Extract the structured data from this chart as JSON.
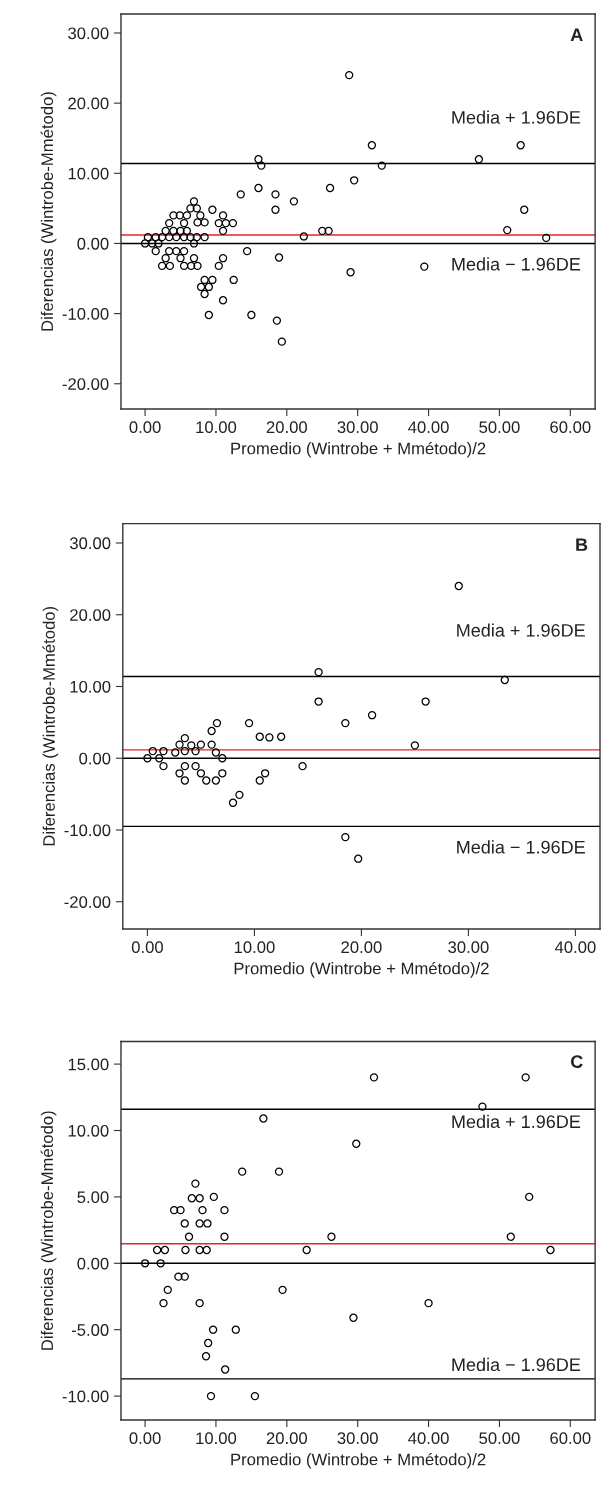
{
  "chart_data": [
    {
      "type": "scatter",
      "title": "A",
      "xlabel": "Promedio (Wintrobe + Mmétodo)/2",
      "ylabel": "Diferencias (Wintrobe-Mmétodo)",
      "color": "#000000",
      "marker": "circle",
      "x": [
        28.8,
        32.0,
        53.0,
        16.0,
        16.4,
        47.1,
        33.4,
        29.5,
        16.0,
        26.1,
        13.5,
        18.4,
        18.4,
        21.0,
        53.5,
        22.4,
        25.0,
        25.9,
        51.1,
        56.6,
        14.4,
        18.9,
        29.0,
        39.4,
        12.5,
        11.0,
        9.0,
        15.0,
        18.6,
        19.3,
        0,
        0.4,
        1.0,
        1.5,
        1.5,
        1.9,
        2.4,
        2.4,
        2.9,
        2.9,
        3.4,
        3.4,
        3.4,
        3.5,
        4.0,
        4.0,
        4.4,
        4.4,
        4.9,
        5.0,
        5.0,
        5.5,
        5.5,
        5.5,
        5.5,
        5.9,
        5.9,
        6.4,
        6.4,
        6.5,
        6.9,
        6.9,
        6.9,
        7.3,
        7.3,
        7.4,
        7.4,
        7.8,
        7.9,
        8.4,
        8.4,
        8.4,
        8.4,
        9.0,
        9.5,
        9.5,
        10.4,
        10.4,
        11.0,
        11.0,
        11.0,
        11.4,
        12.4
      ],
      "values": [
        24,
        14,
        14,
        12,
        11.1,
        12,
        11.1,
        9,
        7.9,
        7.9,
        7,
        7,
        4.8,
        6,
        4.8,
        1,
        1.8,
        1.8,
        1.9,
        0.8,
        -1.1,
        -2,
        -4.1,
        -3.3,
        -5.2,
        -8.1,
        -10.2,
        -10.2,
        -11,
        -14,
        0,
        0.9,
        0,
        0.9,
        -1.1,
        0,
        0.9,
        -3.2,
        1.8,
        -2.1,
        2.9,
        0.9,
        -1.1,
        -3.2,
        4,
        1.8,
        0.9,
        -1.1,
        4,
        1.8,
        -2.1,
        2.9,
        0.9,
        -1.1,
        -3.2,
        4,
        1.8,
        5,
        0.9,
        -3.2,
        6,
        0,
        -2.1,
        5,
        0.9,
        3,
        -3.2,
        4,
        -6.2,
        3,
        0.9,
        -5.2,
        -7.2,
        -6.2,
        -5.2,
        4.8,
        2.9,
        -3.2,
        4,
        1.8,
        -2.1,
        2.9,
        2.9
      ],
      "ref_lines": [
        {
          "axis": "y",
          "value": 0,
          "color": "#000000"
        },
        {
          "axis": "y",
          "value": 1.2,
          "color": "#e8202a"
        },
        {
          "axis": "y",
          "value": 11.4,
          "color": "#000000"
        }
      ],
      "annotations": [
        "Media + 1.96DE",
        "Media − 1.96DE"
      ],
      "xlim": [
        -3.4,
        63.5
      ],
      "ylim": [
        -23.6,
        32.7
      ],
      "xticks": [
        {
          "value": 0,
          "label": "0.00"
        },
        {
          "value": 10,
          "label": "10.00"
        },
        {
          "value": 20,
          "label": "20.00"
        },
        {
          "value": 30,
          "label": "30.00"
        },
        {
          "value": 40,
          "label": "40.00"
        },
        {
          "value": 50,
          "label": "50.00"
        },
        {
          "value": 60,
          "label": "60.00"
        }
      ],
      "yticks": [
        {
          "value": -20,
          "label": "-20.00"
        },
        {
          "value": -10,
          "label": "-10.00"
        },
        {
          "value": 0,
          "label": "0.00"
        },
        {
          "value": 10,
          "label": "10.00"
        },
        {
          "value": 20,
          "label": "20.00"
        },
        {
          "value": 30,
          "label": "30.00"
        }
      ]
    },
    {
      "type": "scatter",
      "title": "B",
      "xlabel": "Promedio (Wintrobe + Mmétodo)/2",
      "ylabel": "Diferencias (Wintrobe-Mmétodo)",
      "color": "#000000",
      "marker": "circle",
      "x": [
        29.1,
        16.0,
        33.4,
        16.0,
        26.0,
        21.0,
        18.5,
        9.5,
        6.5,
        6.0,
        10.5,
        11.4,
        12.5,
        3.5,
        25.0,
        3.0,
        4.1,
        5.0,
        6.0,
        0.5,
        1.5,
        2.6,
        3.5,
        4.5,
        6.4,
        0,
        1.1,
        7.0,
        1.5,
        3.5,
        4.5,
        14.5,
        3.0,
        5.0,
        7.0,
        11.0,
        3.5,
        5.5,
        6.4,
        10.5,
        8.6,
        8.0,
        18.5,
        19.7
      ],
      "values": [
        24,
        12,
        10.9,
        7.9,
        7.9,
        6,
        4.9,
        4.9,
        4.9,
        3.8,
        3,
        2.9,
        3,
        2.8,
        1.8,
        1.9,
        1.8,
        1.9,
        1.9,
        1,
        1,
        0.8,
        1,
        1,
        0.8,
        0,
        0,
        0,
        -1.1,
        -1.1,
        -1.1,
        -1.1,
        -2.1,
        -2.1,
        -2.1,
        -2.1,
        -3.1,
        -3.1,
        -3.1,
        -3.1,
        -5.1,
        -6.2,
        -11,
        -14
      ],
      "ref_lines": [
        {
          "axis": "y",
          "value": 0,
          "color": "#000000"
        },
        {
          "axis": "y",
          "value": 1.16,
          "color": "#e8202a"
        },
        {
          "axis": "y",
          "value": 11.4,
          "color": "#000000"
        },
        {
          "axis": "y",
          "value": -9.5,
          "color": "#000000"
        }
      ],
      "annotations": [
        "Media + 1.96DE",
        "Media − 1.96DE"
      ],
      "xlim": [
        -2.3,
        42.3
      ],
      "ylim": [
        -23.8,
        32.7
      ],
      "xticks": [
        {
          "value": 0,
          "label": "0.00"
        },
        {
          "value": 10,
          "label": "10.00"
        },
        {
          "value": 20,
          "label": "20.00"
        },
        {
          "value": 30,
          "label": "30.00"
        },
        {
          "value": 40,
          "label": "40.00"
        }
      ],
      "yticks": [
        {
          "value": -20,
          "label": "-20.00"
        },
        {
          "value": -10,
          "label": "-10.00"
        },
        {
          "value": 0,
          "label": "0.00"
        },
        {
          "value": 10,
          "label": "10.00"
        },
        {
          "value": 20,
          "label": "20.00"
        },
        {
          "value": 30,
          "label": "30.00"
        }
      ]
    },
    {
      "type": "scatter",
      "title": "C",
      "xlabel": "Promedio (Wintrobe + Mmétodo)/2",
      "ylabel": "Diferencias (Wintrobe-Mmétodo)",
      "color": "#000000",
      "marker": "circle",
      "x": [
        32.3,
        53.7,
        47.6,
        16.7,
        29.8,
        13.7,
        18.9,
        7.1,
        6.6,
        7.7,
        9.7,
        54.2,
        4.1,
        5.0,
        8.1,
        11.2,
        5.6,
        7.7,
        8.8,
        6.2,
        11.2,
        26.3,
        51.6,
        1.7,
        2.8,
        5.7,
        7.7,
        8.7,
        22.8,
        57.2,
        0,
        2.2,
        4.7,
        5.6,
        3.2,
        19.4,
        2.6,
        7.7,
        40.0,
        29.4,
        9.6,
        12.8,
        8.9,
        8.6,
        11.3,
        9.3,
        15.5
      ],
      "values": [
        14,
        14,
        11.8,
        10.9,
        9,
        6.9,
        6.9,
        6,
        4.9,
        4.9,
        5,
        5,
        4,
        4,
        4,
        4,
        3,
        3,
        3,
        2,
        2,
        2,
        2,
        1,
        1,
        1,
        1,
        1,
        1,
        1,
        0,
        0,
        -1,
        -1,
        -2,
        -2,
        -3,
        -3,
        -3,
        -4.1,
        -5,
        -5,
        -6,
        -7,
        -8,
        -10,
        -10
      ],
      "ref_lines": [
        {
          "axis": "y",
          "value": 0,
          "color": "#000000"
        },
        {
          "axis": "y",
          "value": 1.47,
          "color": "#e8202a"
        },
        {
          "axis": "y",
          "value": 11.6,
          "color": "#000000"
        },
        {
          "axis": "y",
          "value": -8.7,
          "color": "#000000"
        }
      ],
      "annotations": [
        "Media + 1.96DE",
        "Media − 1.96DE"
      ],
      "xlim": [
        -3.4,
        63.5
      ],
      "ylim": [
        -11.8,
        16.7
      ],
      "xticks": [
        {
          "value": 0,
          "label": "0.00"
        },
        {
          "value": 10,
          "label": "10.00"
        },
        {
          "value": 20,
          "label": "20.00"
        },
        {
          "value": 30,
          "label": "30.00"
        },
        {
          "value": 40,
          "label": "40.00"
        },
        {
          "value": 50,
          "label": "50.00"
        },
        {
          "value": 60,
          "label": "60.00"
        }
      ],
      "yticks": [
        {
          "value": -10,
          "label": "-10.00"
        },
        {
          "value": -5,
          "label": "-5.00"
        },
        {
          "value": 0,
          "label": "0.00"
        },
        {
          "value": 5,
          "label": "5.00"
        },
        {
          "value": 10,
          "label": "10.00"
        },
        {
          "value": 15,
          "label": "15.00"
        }
      ]
    }
  ]
}
